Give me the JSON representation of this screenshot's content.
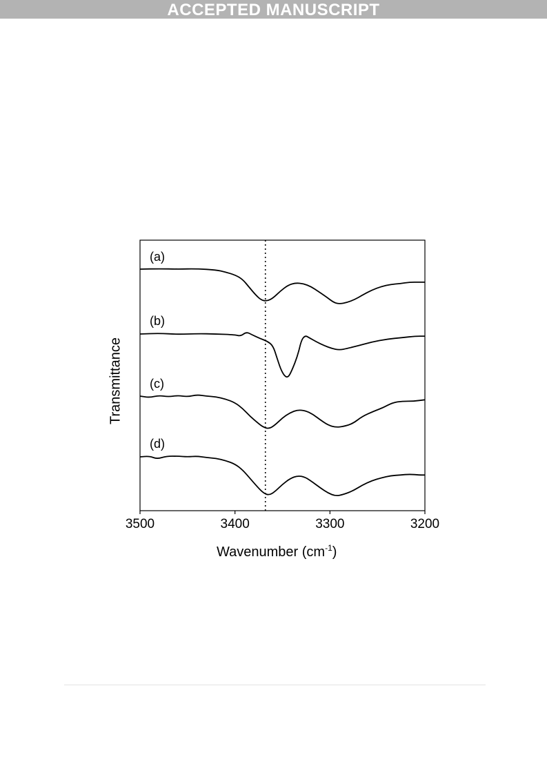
{
  "header": {
    "banner": "ACCEPTED MANUSCRIPT"
  },
  "chart_data": {
    "type": "line",
    "title": "",
    "xlabel": "Wavenumber (cm",
    "xlabel_sup": "-1",
    "xlabel_close": ")",
    "ylabel": "Transmittance",
    "xlim": [
      3500,
      3200
    ],
    "x_reversed": true,
    "x_ticks": [
      "3500",
      "3400",
      "3300",
      "3200"
    ],
    "x_tick_values": [
      3500,
      3400,
      3300,
      3200
    ],
    "y_ticks_shown": false,
    "reference_line": {
      "x": 3368,
      "style": "dotted"
    },
    "y_units": "arbitrary, curves vertically offset",
    "series": [
      {
        "name": "(a)",
        "offset": 0,
        "points": [
          [
            3500,
            0
          ],
          [
            3480,
            0.5
          ],
          [
            3460,
            0
          ],
          [
            3440,
            0.5
          ],
          [
            3420,
            -1
          ],
          [
            3410,
            -4
          ],
          [
            3400,
            -8
          ],
          [
            3392,
            -14
          ],
          [
            3385,
            -25
          ],
          [
            3378,
            -36
          ],
          [
            3372,
            -43
          ],
          [
            3366,
            -44
          ],
          [
            3360,
            -40
          ],
          [
            3352,
            -30
          ],
          [
            3344,
            -22
          ],
          [
            3336,
            -19
          ],
          [
            3328,
            -20
          ],
          [
            3320,
            -24
          ],
          [
            3312,
            -31
          ],
          [
            3304,
            -38
          ],
          [
            3296,
            -46
          ],
          [
            3290,
            -48
          ],
          [
            3282,
            -46
          ],
          [
            3274,
            -42
          ],
          [
            3266,
            -36
          ],
          [
            3256,
            -29
          ],
          [
            3246,
            -24
          ],
          [
            3236,
            -21
          ],
          [
            3226,
            -20
          ],
          [
            3216,
            -18
          ],
          [
            3206,
            -18
          ],
          [
            3200,
            -18
          ]
        ]
      },
      {
        "name": "(b)",
        "offset": 0,
        "points": [
          [
            3500,
            0
          ],
          [
            3480,
            1
          ],
          [
            3460,
            -0.5
          ],
          [
            3440,
            0.5
          ],
          [
            3420,
            0
          ],
          [
            3400,
            -1
          ],
          [
            3394,
            -3
          ],
          [
            3388,
            3
          ],
          [
            3382,
            -1
          ],
          [
            3374,
            -6
          ],
          [
            3366,
            -10
          ],
          [
            3360,
            -16
          ],
          [
            3356,
            -32
          ],
          [
            3352,
            -48
          ],
          [
            3348,
            -58
          ],
          [
            3344,
            -60
          ],
          [
            3340,
            -50
          ],
          [
            3334,
            -30
          ],
          [
            3330,
            -8
          ],
          [
            3326,
            -2
          ],
          [
            3322,
            -5
          ],
          [
            3314,
            -11
          ],
          [
            3306,
            -16
          ],
          [
            3298,
            -20
          ],
          [
            3290,
            -22
          ],
          [
            3282,
            -20
          ],
          [
            3270,
            -16
          ],
          [
            3256,
            -11
          ],
          [
            3240,
            -7
          ],
          [
            3224,
            -5
          ],
          [
            3210,
            -3
          ],
          [
            3200,
            -3
          ]
        ]
      },
      {
        "name": "(c)",
        "offset": 0,
        "points": [
          [
            3500,
            0
          ],
          [
            3490,
            -2
          ],
          [
            3480,
            1
          ],
          [
            3470,
            -1
          ],
          [
            3460,
            1
          ],
          [
            3450,
            -1
          ],
          [
            3440,
            2
          ],
          [
            3430,
            0
          ],
          [
            3420,
            -1
          ],
          [
            3410,
            -4
          ],
          [
            3400,
            -9
          ],
          [
            3392,
            -17
          ],
          [
            3384,
            -28
          ],
          [
            3376,
            -37
          ],
          [
            3370,
            -43
          ],
          [
            3364,
            -45
          ],
          [
            3358,
            -40
          ],
          [
            3350,
            -30
          ],
          [
            3342,
            -23
          ],
          [
            3334,
            -19
          ],
          [
            3326,
            -20
          ],
          [
            3318,
            -25
          ],
          [
            3310,
            -33
          ],
          [
            3302,
            -40
          ],
          [
            3294,
            -43
          ],
          [
            3286,
            -42
          ],
          [
            3276,
            -38
          ],
          [
            3266,
            -28
          ],
          [
            3254,
            -21
          ],
          [
            3244,
            -16
          ],
          [
            3234,
            -9
          ],
          [
            3224,
            -7
          ],
          [
            3212,
            -7
          ],
          [
            3200,
            -5
          ]
        ]
      },
      {
        "name": "(d)",
        "offset": 0,
        "points": [
          [
            3500,
            0
          ],
          [
            3490,
            1
          ],
          [
            3482,
            -3
          ],
          [
            3472,
            1
          ],
          [
            3460,
            1
          ],
          [
            3450,
            0
          ],
          [
            3440,
            1
          ],
          [
            3430,
            -1
          ],
          [
            3420,
            -2
          ],
          [
            3410,
            -5
          ],
          [
            3400,
            -10
          ],
          [
            3392,
            -18
          ],
          [
            3384,
            -30
          ],
          [
            3376,
            -42
          ],
          [
            3370,
            -50
          ],
          [
            3364,
            -53
          ],
          [
            3358,
            -48
          ],
          [
            3350,
            -38
          ],
          [
            3342,
            -30
          ],
          [
            3334,
            -26
          ],
          [
            3326,
            -28
          ],
          [
            3318,
            -35
          ],
          [
            3310,
            -43
          ],
          [
            3302,
            -50
          ],
          [
            3294,
            -54
          ],
          [
            3286,
            -52
          ],
          [
            3276,
            -47
          ],
          [
            3266,
            -39
          ],
          [
            3256,
            -33
          ],
          [
            3246,
            -29
          ],
          [
            3236,
            -26
          ],
          [
            3226,
            -25
          ],
          [
            3216,
            -24
          ],
          [
            3206,
            -25
          ],
          [
            3200,
            -25
          ]
        ]
      }
    ]
  }
}
